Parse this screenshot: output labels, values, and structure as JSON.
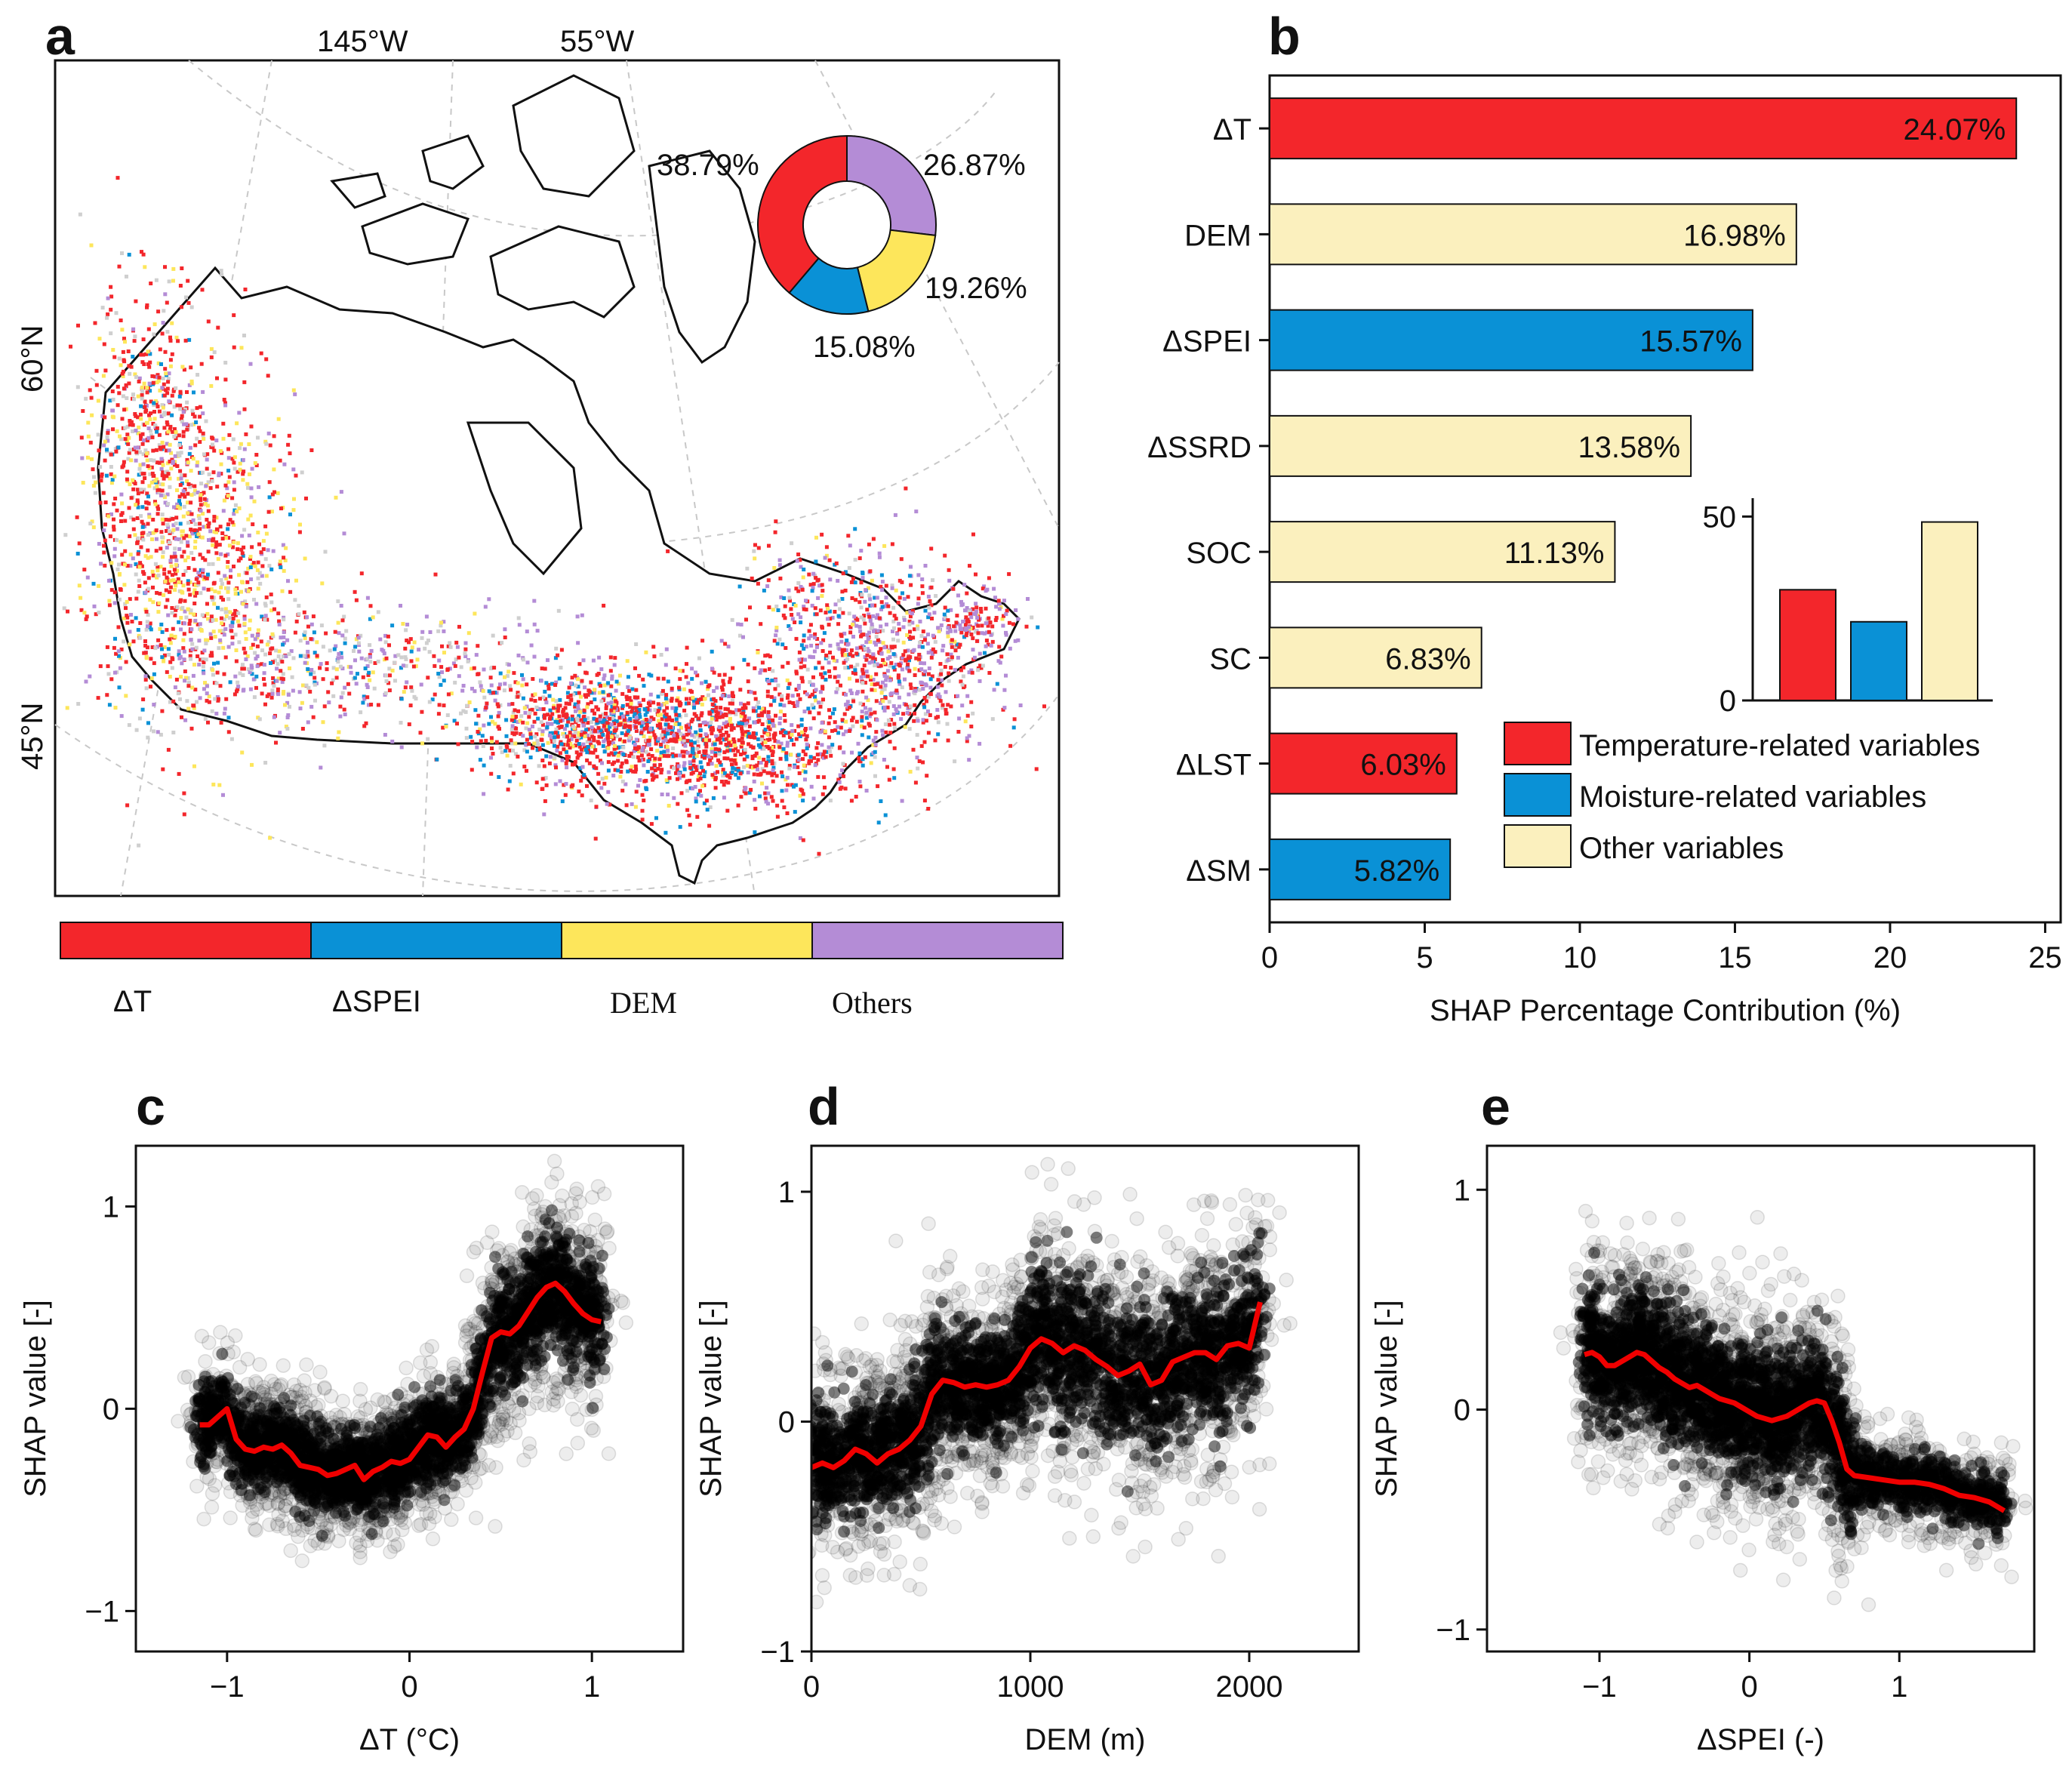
{
  "colors": {
    "temperature": "#F3262B",
    "moisture": "#0A91D6",
    "dem": "#FDE65B",
    "other": "#FBF0BE",
    "others_map": "#B48CD6",
    "curve": "#F00000",
    "ink": "#111111"
  },
  "panel_a": {
    "letter": "a",
    "graticule_labels": [
      "145°W",
      "55°W",
      "60°N",
      "45°N"
    ],
    "donut": {
      "labels": [
        "38.79%",
        "26.87%",
        "19.26%",
        "15.08%"
      ],
      "values": [
        38.79,
        26.87,
        19.26,
        15.08
      ],
      "slice_colors": [
        "#F3262B",
        "#B48CD6",
        "#FDE65B",
        "#0A91D6"
      ]
    },
    "colorbar_labels": [
      "ΔT",
      "ΔSPEI",
      "DEM",
      "Others"
    ]
  },
  "chart_data": [
    {
      "panel": "b",
      "type": "bar",
      "orientation": "horizontal",
      "categories": [
        "ΔT",
        "DEM",
        "ΔSPEI",
        "ΔSSRD",
        "SOC",
        "SC",
        "ΔLST",
        "ΔSM"
      ],
      "values": [
        24.07,
        16.98,
        15.57,
        13.58,
        11.13,
        6.83,
        6.03,
        5.82
      ],
      "value_labels": [
        "24.07%",
        "16.98%",
        "15.57%",
        "13.58%",
        "11.13%",
        "6.83%",
        "6.03%",
        "5.82%"
      ],
      "groups": [
        "temperature",
        "other",
        "moisture",
        "other",
        "other",
        "other",
        "temperature",
        "moisture"
      ],
      "xlabel": "SHAP Percentage Contribution (%)",
      "xlim": [
        0,
        25.5
      ],
      "xticks": [
        0,
        5,
        10,
        15,
        20,
        25
      ],
      "legend": [
        "Temperature-related variables",
        "Moisture-related variables",
        "Other variables"
      ],
      "legend_position": "lower-right",
      "inset": {
        "type": "bar",
        "values": [
          30.1,
          21.39,
          48.52
        ],
        "groups": [
          "temperature",
          "moisture",
          "other"
        ],
        "ylim": [
          0,
          55
        ],
        "yticks": [
          0,
          50
        ]
      }
    },
    {
      "panel": "c",
      "type": "scatter",
      "xlabel": "ΔT (°C)",
      "ylabel": "SHAP value [-]",
      "xlim": [
        -1.5,
        1.5
      ],
      "ylim": [
        -1.2,
        1.3
      ],
      "xticks": [
        -1,
        0,
        1
      ],
      "yticks": [
        -1,
        0,
        1
      ],
      "trend_x": [
        -1.15,
        -1.1,
        -1.0,
        -0.95,
        -0.9,
        -0.85,
        -0.8,
        -0.75,
        -0.7,
        -0.65,
        -0.6,
        -0.55,
        -0.5,
        -0.45,
        -0.4,
        -0.35,
        -0.3,
        -0.25,
        -0.2,
        -0.15,
        -0.1,
        -0.05,
        0.0,
        0.05,
        0.1,
        0.15,
        0.2,
        0.25,
        0.3,
        0.35,
        0.4,
        0.45,
        0.5,
        0.55,
        0.6,
        0.65,
        0.7,
        0.75,
        0.8,
        0.85,
        0.9,
        0.95,
        1.0,
        1.05
      ],
      "trend_y": [
        -0.08,
        -0.08,
        0.0,
        -0.15,
        -0.2,
        -0.21,
        -0.19,
        -0.2,
        -0.18,
        -0.22,
        -0.28,
        -0.29,
        -0.3,
        -0.33,
        -0.32,
        -0.3,
        -0.28,
        -0.35,
        -0.31,
        -0.29,
        -0.26,
        -0.27,
        -0.25,
        -0.19,
        -0.13,
        -0.14,
        -0.19,
        -0.14,
        -0.1,
        0.0,
        0.18,
        0.35,
        0.38,
        0.37,
        0.41,
        0.48,
        0.55,
        0.6,
        0.62,
        0.58,
        0.52,
        0.47,
        0.44,
        0.43
      ]
    },
    {
      "panel": "d",
      "type": "scatter",
      "xlabel": "DEM (m)",
      "ylabel": "SHAP value [-]",
      "xlim": [
        0,
        2500
      ],
      "ylim": [
        -1.0,
        1.2
      ],
      "xticks": [
        0,
        1000,
        2000
      ],
      "yticks": [
        -1,
        0,
        1
      ],
      "trend_x": [
        0,
        50,
        100,
        150,
        200,
        250,
        300,
        350,
        400,
        450,
        500,
        550,
        600,
        650,
        700,
        750,
        800,
        850,
        900,
        950,
        1000,
        1050,
        1100,
        1150,
        1200,
        1250,
        1300,
        1350,
        1400,
        1450,
        1500,
        1550,
        1600,
        1650,
        1700,
        1750,
        1800,
        1850,
        1900,
        1950,
        2000,
        2050
      ],
      "trend_y": [
        -0.2,
        -0.18,
        -0.2,
        -0.17,
        -0.12,
        -0.14,
        -0.18,
        -0.14,
        -0.12,
        -0.08,
        -0.02,
        0.12,
        0.18,
        0.17,
        0.15,
        0.16,
        0.15,
        0.16,
        0.18,
        0.24,
        0.32,
        0.36,
        0.34,
        0.3,
        0.33,
        0.31,
        0.27,
        0.24,
        0.2,
        0.22,
        0.25,
        0.16,
        0.18,
        0.26,
        0.28,
        0.3,
        0.3,
        0.27,
        0.33,
        0.34,
        0.32,
        0.52
      ]
    },
    {
      "panel": "e",
      "type": "scatter",
      "xlabel": "ΔSPEI (-)",
      "ylabel": "SHAP value [-]",
      "xlim": [
        -1.75,
        1.9
      ],
      "ylim": [
        -1.1,
        1.2
      ],
      "xticks": [
        -1,
        0,
        1
      ],
      "yticks": [
        -1,
        0,
        1
      ],
      "trend_x": [
        -1.1,
        -1.05,
        -1.0,
        -0.95,
        -0.9,
        -0.85,
        -0.8,
        -0.75,
        -0.7,
        -0.65,
        -0.6,
        -0.55,
        -0.5,
        -0.45,
        -0.4,
        -0.35,
        -0.3,
        -0.25,
        -0.2,
        -0.15,
        -0.1,
        -0.05,
        0.0,
        0.05,
        0.1,
        0.15,
        0.2,
        0.25,
        0.3,
        0.35,
        0.4,
        0.45,
        0.5,
        0.55,
        0.6,
        0.65,
        0.7,
        0.8,
        0.9,
        1.0,
        1.1,
        1.2,
        1.3,
        1.4,
        1.5,
        1.6,
        1.7
      ],
      "trend_y": [
        0.25,
        0.26,
        0.24,
        0.2,
        0.2,
        0.22,
        0.24,
        0.26,
        0.25,
        0.22,
        0.19,
        0.17,
        0.14,
        0.12,
        0.1,
        0.11,
        0.09,
        0.07,
        0.05,
        0.04,
        0.03,
        0.01,
        -0.01,
        -0.03,
        -0.04,
        -0.05,
        -0.04,
        -0.03,
        -0.01,
        0.01,
        0.03,
        0.04,
        0.03,
        -0.05,
        -0.15,
        -0.27,
        -0.3,
        -0.31,
        -0.32,
        -0.33,
        -0.33,
        -0.34,
        -0.36,
        -0.39,
        -0.4,
        -0.42,
        -0.46
      ]
    }
  ]
}
